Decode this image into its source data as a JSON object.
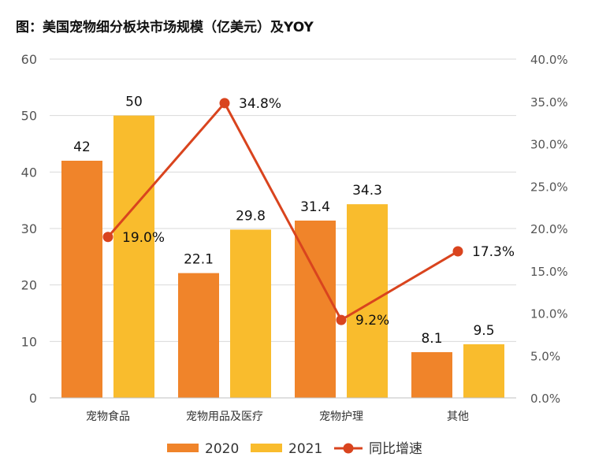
{
  "title": "图：美国宠物细分板块市场规模（亿美元）及YOY",
  "chart_data": {
    "type": "bar",
    "title": "图：美国宠物细分板块市场规模（亿美元）及YOY",
    "categories": [
      "宠物食品",
      "宠物用品及医疗",
      "宠物护理",
      "其他"
    ],
    "series": [
      {
        "name": "2020",
        "type": "bar",
        "axis": "left",
        "color": "#F0842A",
        "values": [
          42,
          22.1,
          31.4,
          8.1
        ]
      },
      {
        "name": "2021",
        "type": "bar",
        "axis": "left",
        "color": "#F9BC2D",
        "values": [
          50,
          29.8,
          34.3,
          9.5
        ]
      },
      {
        "name": "同比增速",
        "type": "line",
        "axis": "right",
        "color": "#D9441E",
        "values": [
          19.0,
          34.8,
          9.2,
          17.3
        ]
      }
    ],
    "value_labels": {
      "2020": [
        "42",
        "22.1",
        "31.4",
        "8.1"
      ],
      "2021": [
        "50",
        "29.8",
        "34.3",
        "9.5"
      ],
      "同比增速": [
        "19.0%",
        "34.8%",
        "9.2%",
        "17.3%"
      ]
    },
    "ylim": [
      0,
      60
    ],
    "yticks": [
      "0",
      "10",
      "20",
      "30",
      "40",
      "50",
      "60"
    ],
    "y2lim": [
      0,
      40
    ],
    "y2ticks": [
      "0.0%",
      "5.0%",
      "10.0%",
      "15.0%",
      "20.0%",
      "25.0%",
      "30.0%",
      "35.0%",
      "40.0%"
    ],
    "grid": true,
    "legend": "bottom"
  }
}
